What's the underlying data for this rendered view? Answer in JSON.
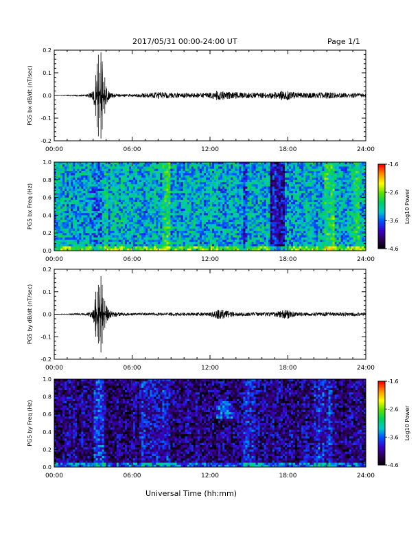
{
  "header": {
    "date_range": "2017/05/31  00:00-24:00 UT",
    "page_label": "Page 1/1"
  },
  "x_axis_label": "Universal Time (hh:mm)",
  "colors": {
    "trace": "#000000",
    "colorbar_stops": [
      "#000000",
      "#2a0050",
      "#3a00c8",
      "#0050ff",
      "#00c8c8",
      "#00d060",
      "#60e000",
      "#ffff00",
      "#ff9000",
      "#ff0000"
    ]
  },
  "chart_data": [
    {
      "type": "line",
      "ylabel": "PG5 bx dB/dt (nT/sec)",
      "xlim": [
        0,
        24
      ],
      "ylim": [
        -0.2,
        0.2
      ],
      "xticks": [
        "00:00",
        "06:00",
        "12:00",
        "18:00",
        "24:00"
      ],
      "yticks": [
        "0.2",
        "0.1",
        "0.0",
        "-0.1",
        "-0.2"
      ],
      "series": [
        {
          "x": [
            0.0,
            2.5,
            3.0,
            3.2,
            3.3,
            3.4,
            3.5,
            3.6,
            3.7,
            3.8,
            3.9,
            4.0,
            4.2,
            4.5,
            5.0,
            6.0,
            7.0,
            8.0,
            9.0,
            10.0,
            11.0,
            12.0,
            12.5,
            13.0,
            13.5,
            14.0,
            15.0,
            16.0,
            17.0,
            17.5,
            18.0,
            19.0,
            20.0,
            21.0,
            22.0,
            23.0,
            24.0
          ],
          "y": [
            0.0,
            0.005,
            0.02,
            0.09,
            -0.14,
            0.18,
            -0.1,
            0.19,
            -0.15,
            0.06,
            -0.08,
            0.04,
            0.02,
            0.01,
            0.006,
            0.005,
            0.01,
            0.015,
            0.012,
            0.01,
            0.01,
            0.012,
            0.02,
            0.018,
            0.015,
            0.015,
            0.012,
            0.012,
            0.015,
            0.02,
            0.02,
            0.012,
            0.012,
            0.015,
            0.01,
            0.01,
            0.01
          ]
        }
      ]
    },
    {
      "type": "heatmap",
      "ylabel": "PG5 bx Freq (Hz)",
      "xlim": [
        0,
        24
      ],
      "ylim": [
        0,
        1.0
      ],
      "xticks": [
        "00:00",
        "06:00",
        "12:00",
        "18:00",
        "24:00"
      ],
      "yticks": [
        "1.0",
        "0.8",
        "0.6",
        "0.4",
        "0.2",
        "0.0"
      ],
      "colorbar": {
        "label": "Log10 Power",
        "range": [
          -4.6,
          -1.6
        ],
        "ticks": [
          "-1.6",
          "-2.6",
          "-3.6",
          "-4.6"
        ]
      },
      "base_level": -3.3,
      "time_features": [
        {
          "from": 3.0,
          "to": 3.6,
          "delta": -0.3
        },
        {
          "from": 8.3,
          "to": 8.9,
          "delta": 0.35
        },
        {
          "from": 14.5,
          "to": 14.8,
          "delta": -0.4
        },
        {
          "from": 16.6,
          "to": 17.7,
          "delta": -0.65
        },
        {
          "from": 20.8,
          "to": 21.6,
          "delta": 0.4
        },
        {
          "from": 23.0,
          "to": 23.5,
          "delta": 0.3
        }
      ]
    },
    {
      "type": "line",
      "ylabel": "PG5 by dB/dt (nT/sec)",
      "xlim": [
        0,
        24
      ],
      "ylim": [
        -0.2,
        0.2
      ],
      "xticks": [
        "00:00",
        "06:00",
        "12:00",
        "18:00",
        "24:00"
      ],
      "yticks": [
        "0.2",
        "0.1",
        "0.0",
        "-0.1",
        "-0.2"
      ],
      "series": [
        {
          "x": [
            0.0,
            2.5,
            3.0,
            3.2,
            3.3,
            3.4,
            3.5,
            3.6,
            3.7,
            3.8,
            3.9,
            4.0,
            4.3,
            5.0,
            6.0,
            7.0,
            8.0,
            9.0,
            10.0,
            11.0,
            12.0,
            12.6,
            13.0,
            13.4,
            14.0,
            15.0,
            16.0,
            17.0,
            17.6,
            18.0,
            18.4,
            19.0,
            20.0,
            21.0,
            22.0,
            23.0,
            24.0
          ],
          "y": [
            0.0,
            0.005,
            0.02,
            0.1,
            -0.1,
            0.13,
            -0.12,
            0.17,
            -0.13,
            0.07,
            -0.06,
            0.04,
            0.015,
            0.008,
            0.005,
            0.006,
            0.006,
            0.007,
            0.007,
            0.007,
            0.008,
            0.02,
            0.02,
            0.015,
            0.008,
            0.008,
            0.008,
            0.01,
            0.018,
            0.02,
            0.012,
            0.008,
            0.008,
            0.008,
            0.008,
            0.008,
            0.008
          ]
        }
      ]
    },
    {
      "type": "heatmap",
      "ylabel": "PG5 by Freq (Hz)",
      "xlim": [
        0,
        24
      ],
      "ylim": [
        0,
        1.0
      ],
      "xticks": [
        "00:00",
        "06:00",
        "12:00",
        "18:00",
        "24:00"
      ],
      "yticks": [
        "1.0",
        "0.8",
        "0.6",
        "0.4",
        "0.2",
        "0.0"
      ],
      "colorbar": {
        "label": "Log10 Power",
        "range": [
          -4.6,
          -1.6
        ],
        "ticks": [
          "-1.6",
          "-2.6",
          "-3.6",
          "-4.6"
        ]
      },
      "base_level": -4.15,
      "time_features": [
        {
          "from": 3.0,
          "to": 3.8,
          "delta": 0.4
        },
        {
          "from": 6.5,
          "to": 9.0,
          "delta": 0.25
        },
        {
          "from": 12.5,
          "to": 13.8,
          "delta": 0.55,
          "fmin": 0.55,
          "fmax": 0.75
        },
        {
          "from": 14.5,
          "to": 15.5,
          "delta": 0.3
        },
        {
          "from": 20.0,
          "to": 21.5,
          "delta": 0.3
        }
      ]
    }
  ]
}
